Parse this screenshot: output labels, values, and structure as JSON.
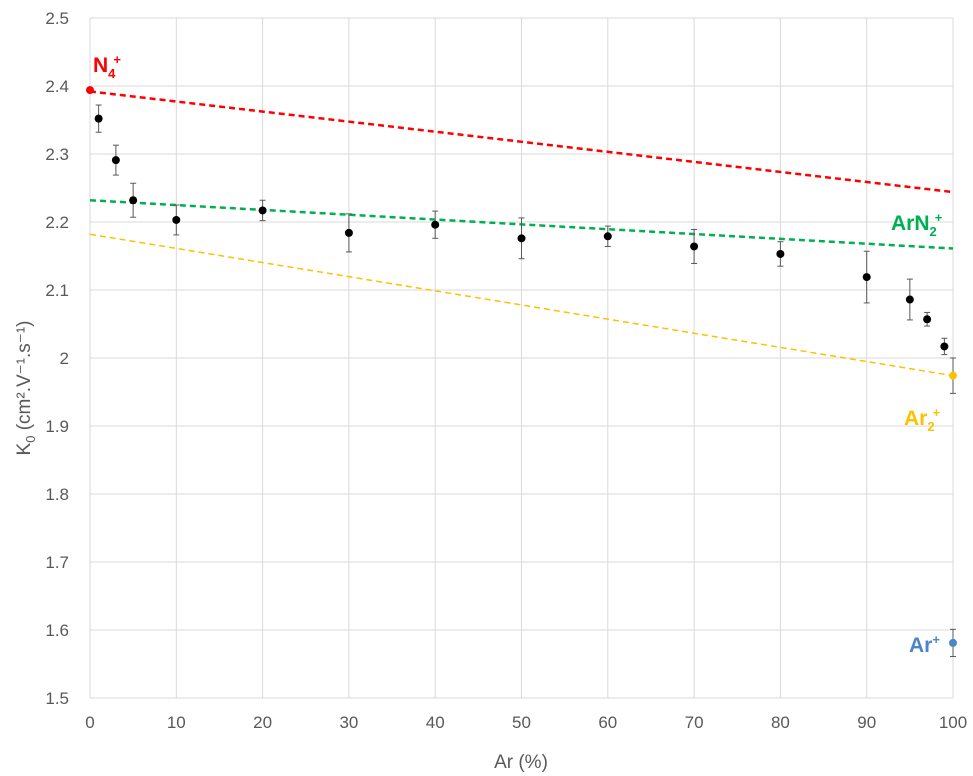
{
  "chart_data": {
    "type": "scatter",
    "xlabel": "Ar (%)",
    "ylabel": "K0 (cm².V⁻¹.s⁻¹)",
    "ylabel_parts": {
      "main": "K",
      "main_sub": "0",
      "units": " (cm².V⁻¹.s⁻¹)"
    },
    "xlim": [
      0,
      100
    ],
    "ylim": [
      1.5,
      2.5
    ],
    "x_ticks": [
      0,
      10,
      20,
      30,
      40,
      50,
      60,
      70,
      80,
      90,
      100
    ],
    "y_ticks": [
      1.5,
      1.6,
      1.7,
      1.8,
      1.9,
      2.0,
      2.1,
      2.2,
      2.3,
      2.4,
      2.5
    ],
    "y_tick_labels": [
      "1.5",
      "1.6",
      "1.7",
      "1.8",
      "1.9",
      "2",
      "2.1",
      "2.2",
      "2.3",
      "2.4",
      "2.5"
    ],
    "grid": true,
    "measured": {
      "color": "#000000",
      "points": [
        {
          "x": 1,
          "y": 2.352,
          "err": 0.02
        },
        {
          "x": 3,
          "y": 2.291,
          "err": 0.022
        },
        {
          "x": 5,
          "y": 2.232,
          "err": 0.025
        },
        {
          "x": 10,
          "y": 2.203,
          "err": 0.022
        },
        {
          "x": 20,
          "y": 2.217,
          "err": 0.015
        },
        {
          "x": 30,
          "y": 2.184,
          "err": 0.028
        },
        {
          "x": 40,
          "y": 2.196,
          "err": 0.02
        },
        {
          "x": 50,
          "y": 2.176,
          "err": 0.03
        },
        {
          "x": 60,
          "y": 2.179,
          "err": 0.015
        },
        {
          "x": 70,
          "y": 2.164,
          "err": 0.025
        },
        {
          "x": 80,
          "y": 2.153,
          "err": 0.018
        },
        {
          "x": 90,
          "y": 2.119,
          "err": 0.038
        },
        {
          "x": 95,
          "y": 2.086,
          "err": 0.03
        },
        {
          "x": 97,
          "y": 2.057,
          "err": 0.01
        },
        {
          "x": 99,
          "y": 2.017,
          "err": 0.012
        }
      ]
    },
    "reference_points": [
      {
        "label": "Ar₂⁺",
        "x": 100,
        "y": 1.974,
        "err": 0.026,
        "color": "#FFC000"
      },
      {
        "label": "Ar⁺",
        "x": 100,
        "y": 1.581,
        "err": 0.02,
        "color": "#4A86C8"
      },
      {
        "label": "N₄⁺",
        "x": 0,
        "y": 2.394,
        "err": 0,
        "color": "#FF0000"
      }
    ],
    "trend_lines": [
      {
        "label": "N₄⁺",
        "label_main": "N",
        "label_sub": "4",
        "label_sup": "+",
        "color": "#FF0000",
        "x": [
          0,
          100
        ],
        "y": [
          2.392,
          2.244
        ]
      },
      {
        "label": "ArN₂⁺",
        "label_main": "ArN",
        "label_sub": "2",
        "label_sup": "+",
        "color": "#00B050",
        "x": [
          0,
          100
        ],
        "y": [
          2.232,
          2.161
        ]
      },
      {
        "label": "Ar₂⁺",
        "label_main": "Ar",
        "label_sub": "2",
        "label_sup": "+",
        "color": "#FFC000",
        "x": [
          0,
          100
        ],
        "y": [
          2.182,
          1.974
        ]
      }
    ],
    "annotation_ar_plus": {
      "label": "Ar+",
      "label_main": "Ar",
      "label_sup": "+",
      "color": "#4A86C8"
    }
  }
}
